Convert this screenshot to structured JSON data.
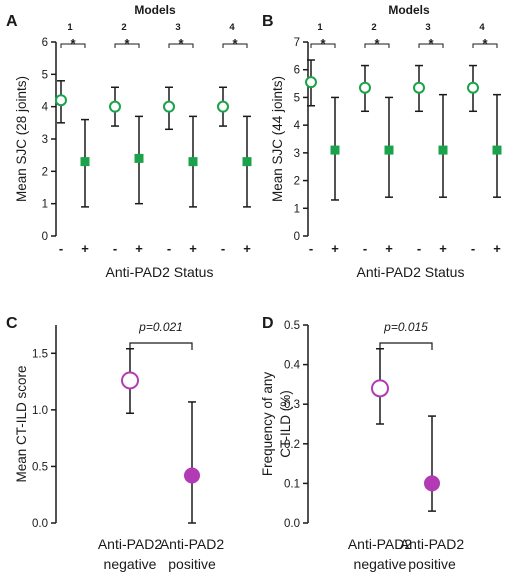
{
  "colors": {
    "green": "#1aa34a",
    "magenta": "#b23ab4",
    "axis": "#1a1a1a"
  },
  "chart_data": [
    {
      "panel": "A",
      "type": "scatter",
      "header": "Models",
      "ylabel": "Mean SJC (28 joints)",
      "xlabel": "Anti-PAD2 Status",
      "ylim": [
        0,
        6
      ],
      "yticks": [
        "0",
        "1",
        "2",
        "3",
        "4",
        "5",
        "6"
      ],
      "models": [
        {
          "number": "1",
          "sig": "*",
          "neg_label": "-",
          "pos_label": "+",
          "neg": {
            "mean": 4.2,
            "low": 3.5,
            "high": 4.8
          },
          "pos": {
            "mean": 2.3,
            "low": 0.9,
            "high": 3.6
          }
        },
        {
          "number": "2",
          "sig": "*",
          "neg_label": "-",
          "pos_label": "+",
          "neg": {
            "mean": 4.0,
            "low": 3.4,
            "high": 4.6
          },
          "pos": {
            "mean": 2.4,
            "low": 1.0,
            "high": 3.7
          }
        },
        {
          "number": "3",
          "sig": "*",
          "neg_label": "-",
          "pos_label": "+",
          "neg": {
            "mean": 4.0,
            "low": 3.3,
            "high": 4.6
          },
          "pos": {
            "mean": 2.3,
            "low": 0.9,
            "high": 3.7
          }
        },
        {
          "number": "4",
          "sig": "*",
          "neg_label": "-",
          "pos_label": "+",
          "neg": {
            "mean": 4.0,
            "low": 3.4,
            "high": 4.6
          },
          "pos": {
            "mean": 2.3,
            "low": 0.9,
            "high": 3.7
          }
        }
      ]
    },
    {
      "panel": "B",
      "type": "scatter",
      "header": "Models",
      "ylabel": "Mean SJC (44 joints)",
      "xlabel": "Anti-PAD2 Status",
      "ylim": [
        0,
        7
      ],
      "yticks": [
        "0",
        "1",
        "2",
        "3",
        "4",
        "5",
        "6",
        "7"
      ],
      "models": [
        {
          "number": "1",
          "sig": "*",
          "neg_label": "-",
          "pos_label": "+",
          "neg": {
            "mean": 5.55,
            "low": 4.7,
            "high": 6.35
          },
          "pos": {
            "mean": 3.1,
            "low": 1.3,
            "high": 5.0
          }
        },
        {
          "number": "2",
          "sig": "*",
          "neg_label": "-",
          "pos_label": "+",
          "neg": {
            "mean": 5.35,
            "low": 4.5,
            "high": 6.15
          },
          "pos": {
            "mean": 3.1,
            "low": 1.4,
            "high": 5.0
          }
        },
        {
          "number": "3",
          "sig": "*",
          "neg_label": "-",
          "pos_label": "+",
          "neg": {
            "mean": 5.35,
            "low": 4.5,
            "high": 6.15
          },
          "pos": {
            "mean": 3.1,
            "low": 1.4,
            "high": 5.1
          }
        },
        {
          "number": "4",
          "sig": "*",
          "neg_label": "-",
          "pos_label": "+",
          "neg": {
            "mean": 5.35,
            "low": 4.5,
            "high": 6.15
          },
          "pos": {
            "mean": 3.1,
            "low": 1.4,
            "high": 5.1
          }
        }
      ]
    },
    {
      "panel": "C",
      "type": "scatter",
      "ylabel": "Mean CT-ILD score",
      "ylim": [
        0,
        1.75
      ],
      "yticks": [
        "0.0",
        "0.5",
        "1.0",
        "1.5"
      ],
      "categories": [
        [
          "Anti-PAD2",
          "negative"
        ],
        [
          "Anti-PAD2",
          "positive"
        ]
      ],
      "points": [
        {
          "mean": 1.26,
          "low": 0.97,
          "high": 1.54
        },
        {
          "mean": 0.42,
          "low": 0.0,
          "high": 1.07
        }
      ],
      "pvalue": "p=0.021"
    },
    {
      "panel": "D",
      "type": "scatter",
      "ylabel": [
        "Frequency of any",
        "CT-ILD (%)"
      ],
      "ylim": [
        0,
        0.5
      ],
      "yticks": [
        "0.0",
        "0.1",
        "0.2",
        "0.3",
        "0.4",
        "0.5"
      ],
      "categories": [
        [
          "Anti-PAD2",
          "negative"
        ],
        [
          "Anti-PAD2",
          "positive"
        ]
      ],
      "points": [
        {
          "mean": 0.34,
          "low": 0.25,
          "high": 0.44
        },
        {
          "mean": 0.1,
          "low": 0.03,
          "high": 0.27
        }
      ],
      "pvalue": "p=0.015"
    }
  ]
}
